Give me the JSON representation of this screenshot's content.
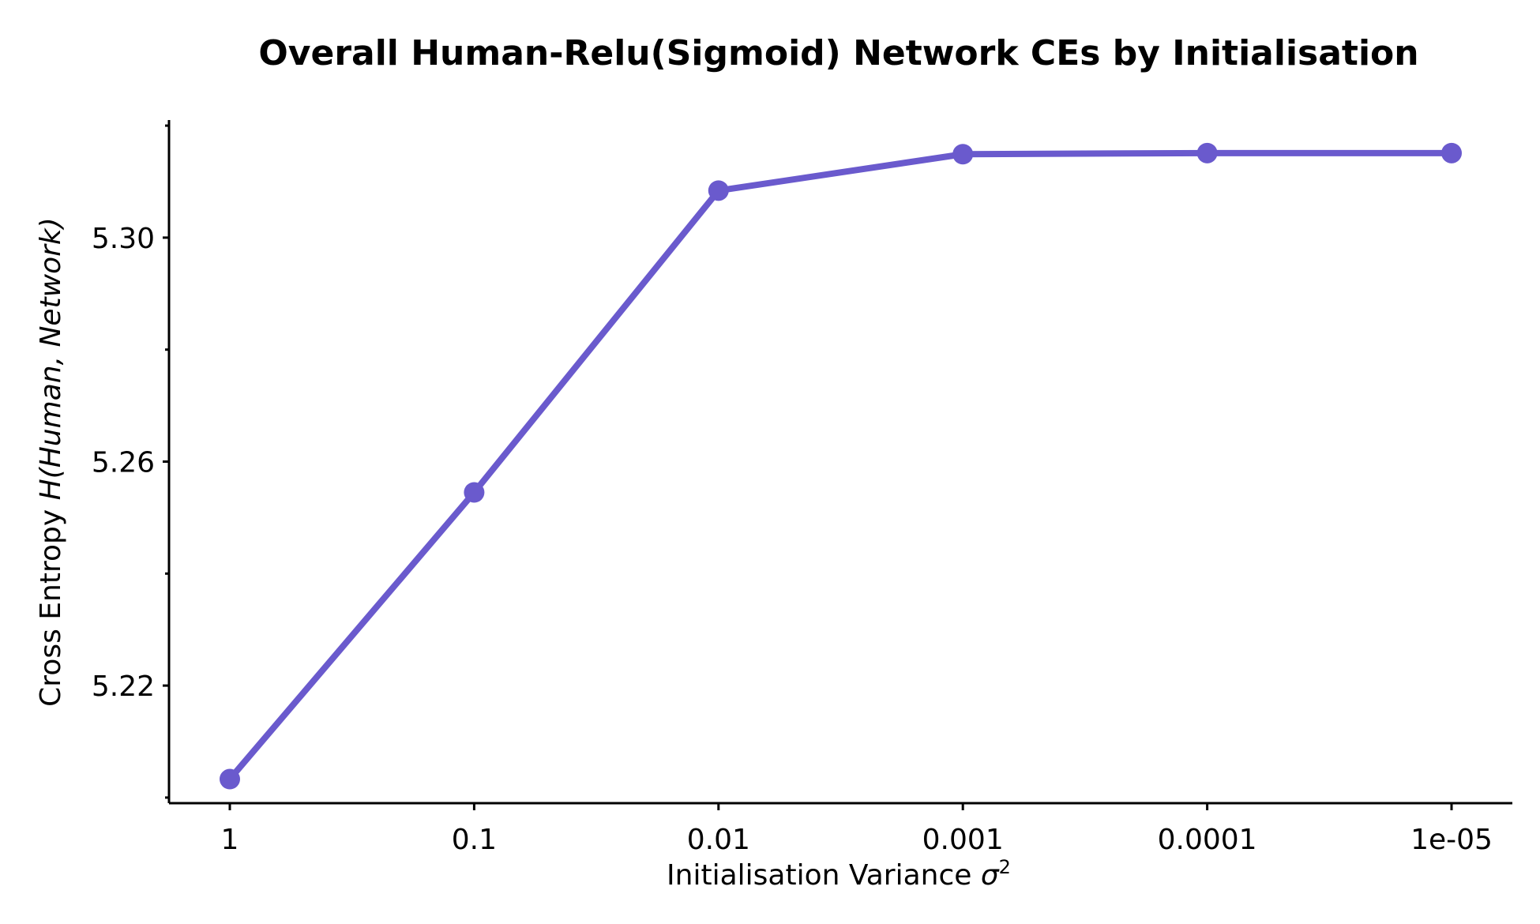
{
  "chart_data": {
    "type": "line",
    "title": "Overall Human-Relu(Sigmoid) Network CEs by Initialisation",
    "xlabel": {
      "prefix": "Initialisation Variance ",
      "symbol": "σ",
      "superscript": "2"
    },
    "ylabel": {
      "prefix": "Cross Entropy ",
      "math": "H(Human, Network)"
    },
    "categories": [
      "1",
      "0.1",
      "0.01",
      "0.001",
      "0.0001",
      "1e-05"
    ],
    "series": [
      {
        "values": [
          5.2033,
          5.2545,
          5.3084,
          5.3149,
          5.3151,
          5.3151
        ],
        "color": "#6a5acd"
      }
    ],
    "ylim": [
      5.199,
      5.321
    ],
    "yticks_major": [
      "5.22",
      "5.26",
      "5.30"
    ],
    "yticks_minor": [
      5.2,
      5.24,
      5.28,
      5.32
    ],
    "grid": false,
    "legend": "none"
  }
}
